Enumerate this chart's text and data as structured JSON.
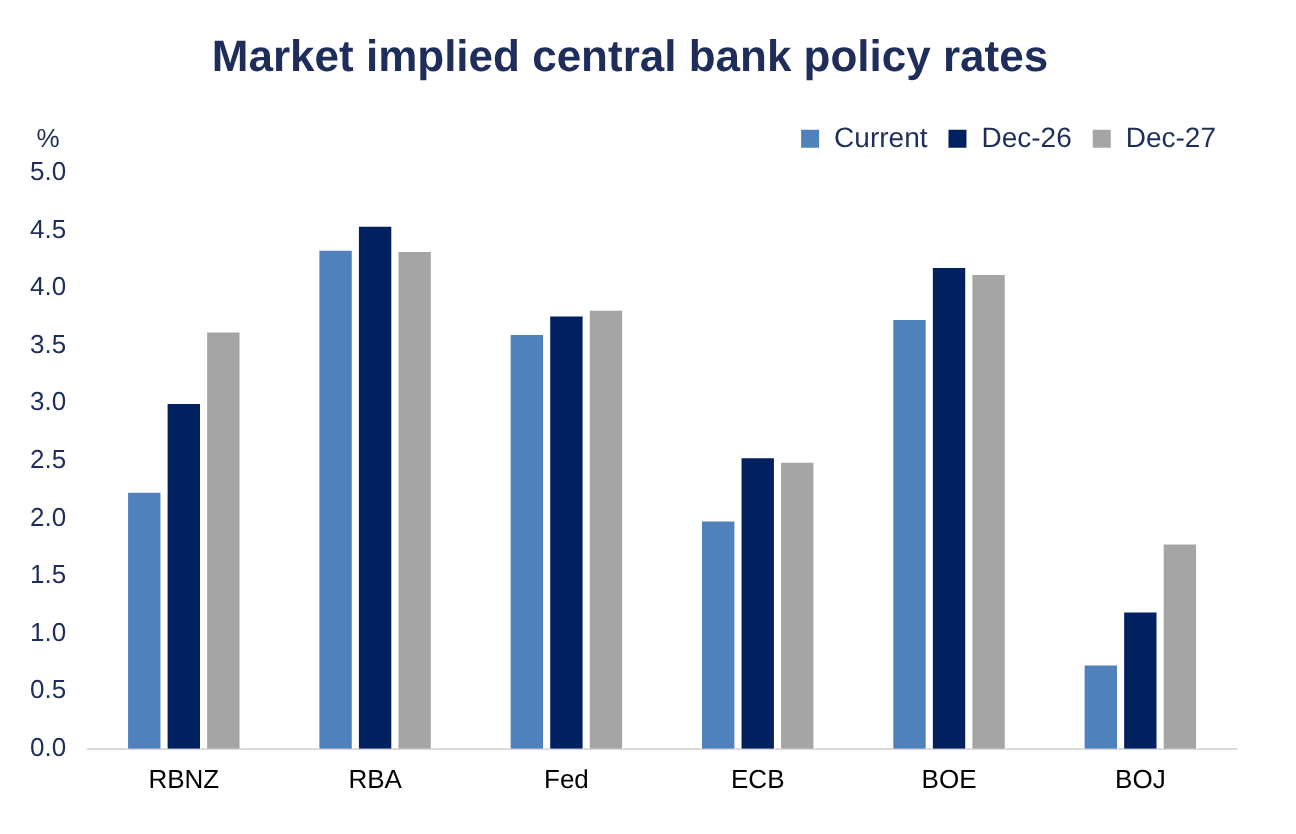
{
  "chart_data": {
    "type": "bar",
    "title": "Market implied central bank policy rates",
    "ylabel": "%",
    "categories": [
      "RBNZ",
      "RBA",
      "Fed",
      "ECB",
      "BOE",
      "BOJ"
    ],
    "series": [
      {
        "name": "Current",
        "color": "#4f81bd",
        "values": [
          2.24,
          4.34,
          3.61,
          1.99,
          3.74,
          0.74
        ]
      },
      {
        "name": "Dec-26",
        "color": "#002060",
        "values": [
          3.01,
          4.55,
          3.77,
          2.54,
          4.19,
          1.2
        ]
      },
      {
        "name": "Dec-27",
        "color": "#a5a5a5",
        "values": [
          3.63,
          4.33,
          3.82,
          2.5,
          4.13,
          1.79
        ]
      }
    ],
    "ylim": [
      0,
      5
    ],
    "yticks": [
      {
        "value": 0,
        "label": "0.0"
      },
      {
        "value": 0.5,
        "label": "0.5"
      },
      {
        "value": 1,
        "label": "1.0"
      },
      {
        "value": 1.5,
        "label": "1.5"
      },
      {
        "value": 2,
        "label": "2.0"
      },
      {
        "value": 2.5,
        "label": "2.5"
      },
      {
        "value": 3,
        "label": "3.0"
      },
      {
        "value": 3.5,
        "label": "3.5"
      },
      {
        "value": 4,
        "label": "4.0"
      },
      {
        "value": 4.5,
        "label": "4.5"
      },
      {
        "value": 5,
        "label": "5.0"
      }
    ],
    "grid": false,
    "legend": "top right"
  }
}
